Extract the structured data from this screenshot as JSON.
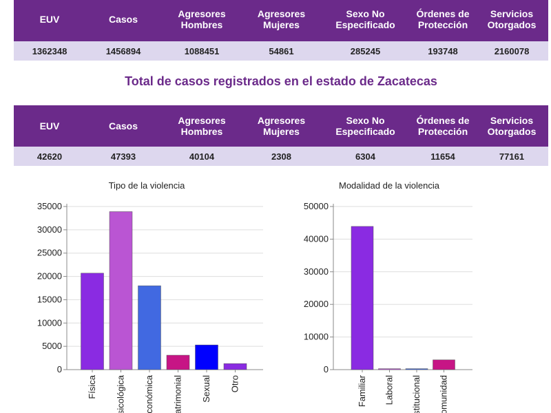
{
  "national_table": {
    "headers": [
      "EUV",
      "Casos",
      "Agresores Hombres",
      "Agresores Mujeres",
      "Sexo No Especificado",
      "Órdenes de Protección",
      "Servicios Otorgados"
    ],
    "values": [
      "1362348",
      "1456894",
      "1088451",
      "54861",
      "285245",
      "193748",
      "2160078"
    ]
  },
  "state_section": {
    "title": "Total de casos registrados en el estado de Zacatecas"
  },
  "state_table": {
    "headers": [
      "EUV",
      "Casos",
      "Agresores Hombres",
      "Agresores Mujeres",
      "Sexo No Especificado",
      "Órdenes de Protección",
      "Servicios Otorgados"
    ],
    "values": [
      "42620",
      "47393",
      "40104",
      "2308",
      "6304",
      "11654",
      "77161"
    ]
  },
  "chart_data": [
    {
      "type": "bar",
      "title": "Tipo de la violencia",
      "categories": [
        "Física",
        "Psicológica",
        "Económica",
        "Patrimonial",
        "Sexual",
        "Otro"
      ],
      "values": [
        20700,
        33900,
        18000,
        3100,
        5300,
        1300
      ],
      "colors": [
        "#8a2be2",
        "#ba55d3",
        "#4169e1",
        "#c71585",
        "#0000ff",
        "#8a2be2"
      ],
      "ylim": [
        0,
        35000
      ],
      "yticks": [
        0,
        5000,
        10000,
        15000,
        20000,
        25000,
        30000,
        35000
      ],
      "grid": true
    },
    {
      "type": "bar",
      "title": "Modalidad de la violencia",
      "categories": [
        "Familiar",
        "Laboral",
        "Institucional",
        "Comunidad"
      ],
      "values": [
        43900,
        300,
        300,
        3000
      ],
      "colors": [
        "#8a2be2",
        "#ba55d3",
        "#4169e1",
        "#c71585"
      ],
      "ylim": [
        0,
        50000
      ],
      "yticks": [
        0,
        10000,
        20000,
        30000,
        40000,
        50000
      ],
      "grid": true
    }
  ]
}
